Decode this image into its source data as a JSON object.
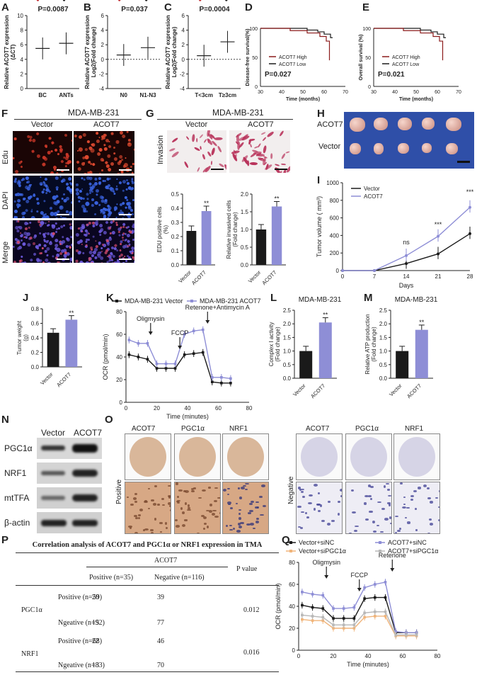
{
  "panel_labels": {
    "A": "A",
    "B": "B",
    "C": "C",
    "D": "D",
    "E": "E",
    "F": "F",
    "G": "G",
    "H": "H",
    "I": "I",
    "J": "J",
    "K": "K",
    "L": "L",
    "M": "M",
    "N": "N",
    "O": "O",
    "P": "P",
    "Q": "Q"
  },
  "colors": {
    "red": "#c0282e",
    "purple": "#8e8ed6",
    "black": "#1a1a1a",
    "orange": "#f0b47a",
    "grey": "#b8b8b8",
    "darkred": "#8b1a1a"
  },
  "chart_data": [
    {
      "id": "A",
      "type": "scatter",
      "title": "P=0.0087",
      "ylabel": "Relative ACOT7 expression (ΔCT)",
      "categories": [
        "BC",
        "ANTs"
      ],
      "ylim": [
        0,
        10
      ],
      "yticks": [
        "0",
        "2",
        "4",
        "6",
        "8",
        "10"
      ],
      "means": [
        5.5,
        6.2
      ]
    },
    {
      "id": "B",
      "type": "scatter",
      "title": "P=0.037",
      "ylabel": "Relative ACOT7 expression Log2(Fold change)",
      "categories": [
        "N0",
        "N1-N3"
      ],
      "ylim": [
        -4,
        6
      ],
      "yticks": [
        "-4",
        "-2",
        "0",
        "2",
        "4",
        "6"
      ],
      "means": [
        0.6,
        1.6
      ]
    },
    {
      "id": "C",
      "type": "scatter",
      "title": "P=0.0004",
      "ylabel": "Relative ACOT7 expression Log2(Fold change)",
      "categories": [
        "T<3cm",
        "T≥3cm"
      ],
      "ylim": [
        -4,
        6
      ],
      "yticks": [
        "-4",
        "-2",
        "0",
        "2",
        "4",
        "6"
      ],
      "means": [
        0.5,
        2.4
      ]
    },
    {
      "id": "D",
      "type": "line",
      "ylabel": "Disease-free survival(%)",
      "xlabel": "Time (months)",
      "xticks": [
        "30",
        "40",
        "50",
        "60",
        "70"
      ],
      "yticks": [
        "0",
        "50",
        "100"
      ],
      "legend": [
        "ACOT7 High",
        "ACOT7 Low"
      ],
      "pvalue": "P=0.027"
    },
    {
      "id": "E",
      "type": "line",
      "ylabel": "Overall survival (%)",
      "xlabel": "Time (months)",
      "xticks": [
        "30",
        "40",
        "50",
        "60",
        "70"
      ],
      "yticks": [
        "0",
        "50",
        "100"
      ],
      "legend": [
        "ACOT7 High",
        "ACOT7 Low"
      ],
      "pvalue": "P=0.021"
    },
    {
      "id": "G1",
      "type": "bar",
      "ylabel": "EDU positive cells (%)",
      "categories": [
        "Vector",
        "ACOT7"
      ],
      "values": [
        0.24,
        0.38
      ],
      "ylim": [
        0,
        0.5
      ],
      "yticks": [
        "0.0",
        "0.1",
        "0.2",
        "0.3",
        "0.4",
        "0.5"
      ],
      "sig": "**"
    },
    {
      "id": "G2",
      "type": "bar",
      "ylabel": "Relative invasived cells (Fold change)",
      "categories": [
        "Vector",
        "ACOT7"
      ],
      "values": [
        1.0,
        1.65
      ],
      "ylim": [
        0,
        2.0
      ],
      "yticks": [
        "0.0",
        "0.5",
        "1.0",
        "1.5",
        "2.0"
      ],
      "sig": "**"
    },
    {
      "id": "I",
      "type": "line",
      "ylabel": "Tumor volume ( mm³)",
      "xlabel": "Days",
      "x": [
        0,
        7,
        14,
        21,
        28
      ],
      "xticks": [
        "0",
        "7",
        "14",
        "21",
        "28"
      ],
      "yticks": [
        "0",
        "200",
        "400",
        "600",
        "800",
        "1000"
      ],
      "ylim": [
        0,
        1000
      ],
      "series": [
        {
          "name": "Vector",
          "values": [
            0,
            0,
            80,
            190,
            420
          ]
        },
        {
          "name": "ACOT7",
          "values": [
            0,
            0,
            170,
            390,
            720
          ]
        }
      ],
      "annotations": [
        "ns",
        "***",
        "***"
      ]
    },
    {
      "id": "J",
      "type": "bar",
      "ylabel": "Tumor weight (g)",
      "categories": [
        "Vector",
        "ACOT7"
      ],
      "values": [
        0.47,
        0.65
      ],
      "ylim": [
        0,
        0.8
      ],
      "yticks": [
        "0.0",
        "0.2",
        "0.4",
        "0.6",
        "0.8"
      ],
      "sig": "**"
    },
    {
      "id": "K",
      "type": "line",
      "ylabel": "OCR (pmol/min)",
      "xlabel": "Time (minutes)",
      "xticks": [
        "0",
        "20",
        "40",
        "60",
        "80"
      ],
      "yticks": [
        "0",
        "20",
        "40",
        "60",
        "80"
      ],
      "ylim": [
        0,
        80
      ],
      "series": [
        {
          "name": "MDA-MB-231 Vector",
          "x": [
            2,
            8,
            14,
            20,
            26,
            32,
            38,
            44,
            50,
            56,
            62,
            68
          ],
          "values": [
            42,
            40,
            38,
            30,
            30,
            30,
            42,
            43,
            44,
            18,
            17,
            17
          ]
        },
        {
          "name": "MDA-MB-231 ACOT7",
          "x": [
            2,
            8,
            14,
            20,
            26,
            32,
            38,
            44,
            50,
            56,
            62,
            68
          ],
          "values": [
            55,
            52,
            52,
            34,
            34,
            34,
            60,
            63,
            64,
            22,
            22,
            21
          ]
        }
      ],
      "annotations": [
        "Oligmysin",
        "FCCP",
        "Retenone+Antimycin A"
      ]
    },
    {
      "id": "L",
      "type": "bar",
      "title": "MDA-MB-231",
      "ylabel": "Complex I activity (Fold change)",
      "categories": [
        "Vector",
        "ACOT7"
      ],
      "values": [
        1.0,
        2.05
      ],
      "ylim": [
        0,
        2.5
      ],
      "yticks": [
        "0.0",
        "0.5",
        "1.0",
        "1.5",
        "2.0",
        "2.5"
      ],
      "sig": "**"
    },
    {
      "id": "M",
      "type": "bar",
      "title": "MDA-MB-231",
      "ylabel": "Relative ATP production (Fold change)",
      "categories": [
        "Vector",
        "ACOT7"
      ],
      "values": [
        1.0,
        1.78
      ],
      "ylim": [
        0,
        2.5
      ],
      "yticks": [
        "0.0",
        "0.5",
        "1.0",
        "1.5",
        "2.0",
        "2.5"
      ],
      "sig": "**"
    },
    {
      "id": "Q",
      "type": "line",
      "ylabel": "OCR (pmol/min)",
      "xlabel": "Time (minutes)",
      "xticks": [
        "0",
        "20",
        "40",
        "60",
        "80"
      ],
      "yticks": [
        "0",
        "20",
        "40",
        "60",
        "80"
      ],
      "ylim": [
        0,
        80
      ],
      "series": [
        {
          "name": "Vector+siNC",
          "x": [
            2,
            8,
            14,
            20,
            26,
            32,
            38,
            44,
            50,
            56,
            62,
            68
          ],
          "values": [
            41,
            39,
            38,
            29,
            29,
            29,
            47,
            48,
            48,
            16,
            16,
            16
          ]
        },
        {
          "name": "ACOT7+siNC",
          "x": [
            2,
            8,
            14,
            20,
            26,
            32,
            38,
            44,
            50,
            56,
            62,
            68
          ],
          "values": [
            53,
            51,
            50,
            38,
            38,
            39,
            57,
            60,
            62,
            17,
            16,
            16
          ]
        },
        {
          "name": "Vector+siPGC1α",
          "x": [
            2,
            8,
            14,
            20,
            26,
            32,
            38,
            44,
            50,
            56,
            62,
            68
          ],
          "values": [
            28,
            27,
            27,
            20,
            20,
            20,
            30,
            31,
            31,
            13,
            13,
            13
          ]
        },
        {
          "name": "ACOT7+siPGC1α",
          "x": [
            2,
            8,
            14,
            20,
            26,
            32,
            38,
            44,
            50,
            56,
            62,
            68
          ],
          "values": [
            32,
            31,
            30,
            23,
            23,
            23,
            34,
            35,
            35,
            14,
            14,
            14
          ]
        }
      ],
      "annotations": [
        "Oligmysin",
        "FCCP",
        "Retenone"
      ]
    }
  ],
  "F": {
    "title": "MDA-MB-231",
    "cols": [
      "Vector",
      "ACOT7"
    ],
    "rows": [
      "Edu",
      "DAPI",
      "Merge"
    ]
  },
  "G": {
    "title": "MDA-MB-231",
    "cols": [
      "Vector",
      "ACOT7"
    ],
    "row": "Invasion"
  },
  "H": {
    "rows": [
      "ACOT7",
      "Vector"
    ]
  },
  "N": {
    "cols": [
      "Vector",
      "ACOT7"
    ],
    "rows": [
      "PGC1α",
      "NRF1",
      "mtTFA",
      "β-actin"
    ]
  },
  "O": {
    "pos_cols": [
      "ACOT7",
      "PGC1α",
      "NRF1"
    ],
    "neg_cols": [
      "ACOT7",
      "PGC1α",
      "NRF1"
    ],
    "pos_label": "Positive",
    "neg_label": "Negative"
  },
  "P": {
    "title": "Correlation analysis of ACOT7 and PGC1α or NRF1 expression in TMA",
    "group_header": "ACOT7",
    "col_pos": "Positive (n=35)",
    "col_neg": "Negative (n=116)",
    "col_p": "P value",
    "rows": [
      {
        "gene": "PGC1α",
        "sub": "Positive (n=59)",
        "pos": "20",
        "neg": "39"
      },
      {
        "gene": "",
        "sub": "Ngeative (n=92)",
        "pos": "15",
        "neg": "77"
      },
      {
        "gene": "NRF1",
        "sub": "Positive (n=68)",
        "pos": "22",
        "neg": "46"
      },
      {
        "gene": "",
        "sub": "Ngeative (n=83)",
        "pos": "13",
        "neg": "70"
      }
    ],
    "pvals": [
      "0.012",
      "0.016"
    ]
  }
}
